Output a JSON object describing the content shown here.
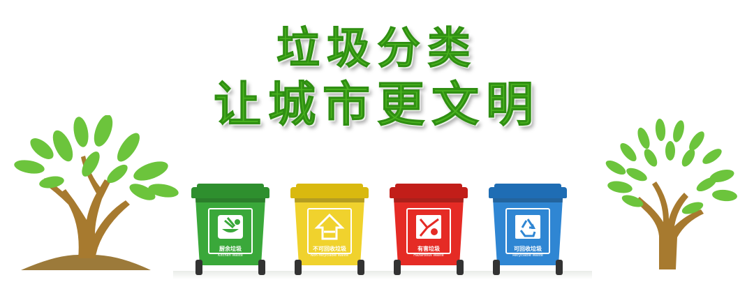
{
  "headline": {
    "line1": "垃圾分类",
    "line2": "让城市更文明"
  },
  "colors": {
    "title_green": "#49b11f",
    "leaf_green": "#6cc43c",
    "trunk_brown": "#a77a2f"
  },
  "bins": [
    {
      "label": "厨余垃圾",
      "sub": "Kitchen Waste",
      "color": "#3aa83a",
      "lid": "#2e8f2e",
      "icon": "kitchen-waste-icon"
    },
    {
      "label": "不可回收垃圾",
      "sub": "Non-recyclable Waste",
      "color": "#f0d22d",
      "lid": "#d9b90f",
      "icon": "non-recyclable-icon"
    },
    {
      "label": "有害垃圾",
      "sub": "Hazardous Waste",
      "color": "#e52b25",
      "lid": "#c21e19",
      "icon": "hazardous-icon"
    },
    {
      "label": "可回收垃圾",
      "sub": "Recyclable Waste",
      "color": "#2f86d3",
      "lid": "#1f6db4",
      "icon": "recycle-icon"
    }
  ]
}
